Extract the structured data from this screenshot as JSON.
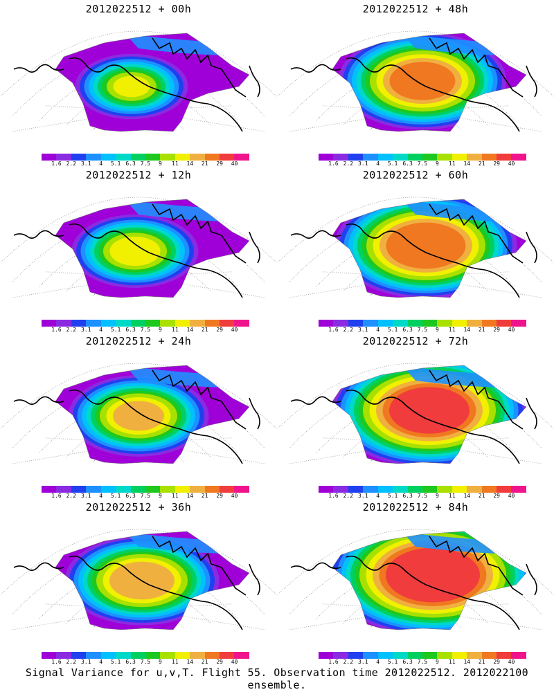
{
  "panels": [
    {
      "title": "2012022512 + 00h",
      "stage": 0
    },
    {
      "title": "2012022512 + 48h",
      "stage": 4
    },
    {
      "title": "2012022512 + 12h",
      "stage": 1
    },
    {
      "title": "2012022512 + 60h",
      "stage": 5
    },
    {
      "title": "2012022512 + 24h",
      "stage": 2
    },
    {
      "title": "2012022512 + 72h",
      "stage": 6
    },
    {
      "title": "2012022512 + 36h",
      "stage": 3
    },
    {
      "title": "2012022512 + 84h",
      "stage": 7
    }
  ],
  "legend": {
    "labels": [
      "1.6",
      "2.2",
      "3.1",
      "4",
      "5.1",
      "6.3",
      "7.5",
      "9",
      "11",
      "14",
      "21",
      "29",
      "40"
    ],
    "colors": [
      "#a000d8",
      "#8a2be2",
      "#2040f0",
      "#1e90ff",
      "#00c0ff",
      "#00d8c8",
      "#00d060",
      "#1ec81e",
      "#a8e000",
      "#f0f000",
      "#f0b040",
      "#f07820",
      "#f03c3c",
      "#f0148c"
    ]
  },
  "footer": "Signal Variance for u,v,T. Flight 55. Observation time 2012022512. 2012022100 ensemble."
}
